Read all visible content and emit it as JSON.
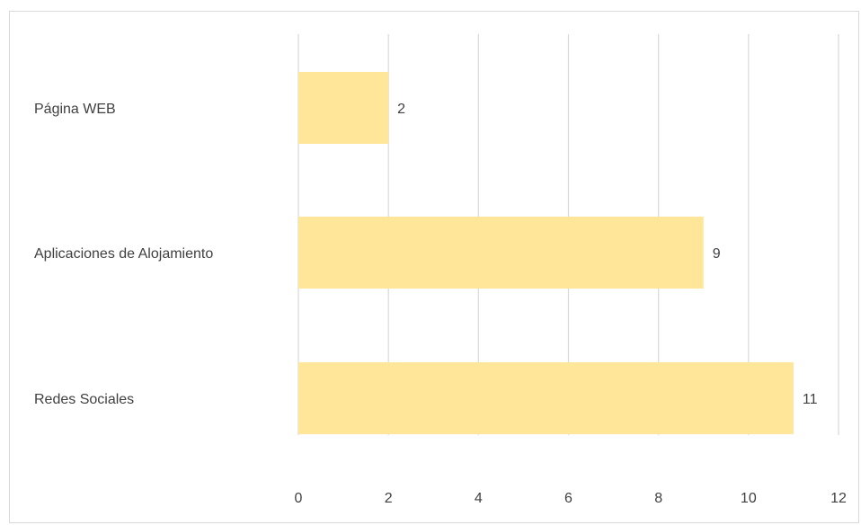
{
  "chart_data": {
    "type": "bar",
    "orientation": "horizontal",
    "categories": [
      "Página WEB",
      "Aplicaciones de Alojamiento",
      "Redes Sociales"
    ],
    "values": [
      2,
      9,
      11
    ],
    "xlim": [
      0,
      12
    ],
    "xticks": [
      0,
      2,
      4,
      6,
      8,
      10,
      12
    ],
    "bar_color": "#FFE699",
    "grid": true,
    "data_labels": true,
    "title": "",
    "xlabel": "",
    "ylabel": ""
  }
}
